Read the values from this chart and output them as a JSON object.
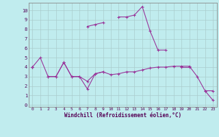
{
  "xlabel": "Windchill (Refroidissement éolien,°C)",
  "x_ticks": [
    0,
    1,
    2,
    3,
    4,
    5,
    6,
    7,
    8,
    9,
    10,
    11,
    12,
    13,
    14,
    15,
    16,
    17,
    18,
    19,
    20,
    21,
    22,
    23
  ],
  "y_ticks": [
    0,
    1,
    2,
    3,
    4,
    5,
    6,
    7,
    8,
    9,
    10
  ],
  "ylim": [
    -0.2,
    10.8
  ],
  "xlim": [
    -0.5,
    23.5
  ],
  "bg_color": "#c0ecee",
  "line_color": "#993399",
  "grid_color": "#aacccc",
  "series": [
    {
      "x": [
        0,
        1,
        2,
        3,
        4,
        5,
        6,
        7,
        8,
        9,
        10,
        11,
        12,
        13,
        14,
        15,
        16,
        17,
        18,
        19,
        20,
        21,
        22,
        23
      ],
      "y": [
        4.0,
        5.0,
        3.0,
        3.0,
        4.5,
        3.0,
        3.0,
        2.5,
        3.3,
        3.5,
        3.2,
        3.3,
        3.5,
        3.5,
        3.7,
        3.9,
        4.0,
        4.0,
        4.1,
        4.1,
        4.1,
        3.0,
        1.5,
        1.5
      ]
    },
    {
      "x": [
        0,
        1,
        2,
        3,
        4,
        5,
        6,
        7,
        8,
        9,
        10,
        11,
        12,
        13,
        14,
        15,
        16,
        17,
        18,
        19,
        20,
        21,
        22,
        23
      ],
      "y": [
        4.0,
        null,
        null,
        null,
        null,
        null,
        null,
        8.3,
        8.5,
        8.7,
        null,
        null,
        null,
        null,
        null,
        null,
        null,
        null,
        null,
        null,
        null,
        null,
        null,
        null
      ]
    },
    {
      "x": [
        0,
        1,
        2,
        3,
        4,
        5,
        6,
        7,
        8,
        9,
        10,
        11,
        12,
        13,
        14,
        15,
        16,
        17,
        18,
        19,
        20,
        21,
        22,
        23
      ],
      "y": [
        4.0,
        null,
        null,
        null,
        null,
        null,
        null,
        null,
        null,
        null,
        null,
        9.3,
        9.3,
        9.5,
        10.4,
        7.8,
        5.8,
        5.8,
        null,
        4.0,
        4.0,
        null,
        1.5,
        0.5
      ]
    },
    {
      "x": [
        0,
        1,
        2,
        3,
        4,
        5,
        6,
        7,
        8,
        9,
        10,
        11,
        12,
        13,
        14,
        15,
        16,
        17,
        18,
        19,
        20,
        21,
        22,
        23
      ],
      "y": [
        4.0,
        null,
        3.0,
        3.0,
        4.5,
        3.0,
        3.0,
        1.7,
        3.3,
        3.5,
        null,
        null,
        null,
        null,
        null,
        null,
        null,
        null,
        null,
        null,
        null,
        null,
        null,
        null
      ]
    }
  ]
}
